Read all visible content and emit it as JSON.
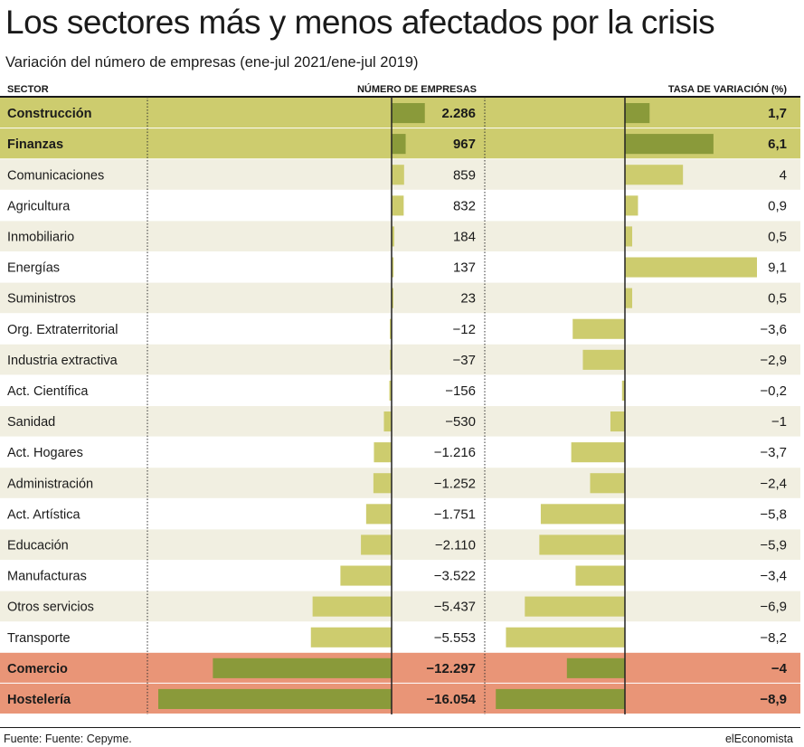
{
  "header": {
    "title": "Los sectores más y menos afectados por la crisis",
    "subtitle": "Variación del número de empresas (ene-jul 2021/ene-jul 2019)",
    "col_sector": "SECTOR",
    "col_num": "NÚMERO DE EMPRESAS",
    "col_rate": "TASA DE VARIACIÓN (%)"
  },
  "footer": {
    "source": "Fuente: Fuente: Cepyme.",
    "brand": "elEconomista"
  },
  "colors": {
    "bar_light": "#cdcc6e",
    "bar_dark": "#8a9a3a",
    "band_green": "#cdcc6e",
    "band_orange": "#e99577",
    "row_alt": "#f1efe1",
    "row_white": "#ffffff"
  },
  "chart_data": {
    "type": "bar",
    "categories": [
      "Construcción",
      "Finanzas",
      "Comunicaciones",
      "Agricultura",
      "Inmobiliario",
      "Energías",
      "Suministros",
      "Org. Extraterritorial",
      "Industria extractiva",
      "Act. Científica",
      "Sanidad",
      "Act. Hogares",
      "Administración",
      "Act. Artística",
      "Educación",
      "Manufacturas",
      "Otros servicios",
      "Transporte",
      "Comercio",
      "Hostelería"
    ],
    "highlight": [
      "green",
      "green",
      "",
      "",
      "",
      "",
      "",
      "",
      "",
      "",
      "",
      "",
      "",
      "",
      "",
      "",
      "",
      "",
      "orange",
      "orange"
    ],
    "series": [
      {
        "name": "NÚMERO DE EMPRESAS",
        "values": [
          2286,
          967,
          859,
          832,
          184,
          137,
          23,
          -12,
          -37,
          -156,
          -530,
          -1216,
          -1252,
          -1751,
          -2110,
          -3522,
          -5437,
          -5553,
          -12297,
          -16054
        ],
        "labels": [
          "2.286",
          "967",
          "859",
          "832",
          "184",
          "137",
          "23",
          "−12",
          "−37",
          "−156",
          "−530",
          "−1.216",
          "−1.252",
          "−1.751",
          "−2.110",
          "−3.522",
          "−5.437",
          "−5.553",
          "−12.297",
          "−16.054"
        ]
      },
      {
        "name": "TASA DE VARIACIÓN (%)",
        "values": [
          1.7,
          6.1,
          4,
          0.9,
          0.5,
          9.1,
          0.5,
          -3.6,
          -2.9,
          -0.2,
          -1,
          -3.7,
          -2.4,
          -5.8,
          -5.9,
          -3.4,
          -6.9,
          -8.2,
          -4,
          -8.9
        ],
        "labels": [
          "1,7",
          "6,1",
          "4",
          "0,9",
          "0,5",
          "9,1",
          "0,5",
          "−3,6",
          "−2,9",
          "−0,2",
          "−1",
          "−3,7",
          "−2,4",
          "−5,8",
          "−5,9",
          "−3,4",
          "−6,9",
          "−8,2",
          "−4",
          "−8,9"
        ]
      }
    ]
  }
}
